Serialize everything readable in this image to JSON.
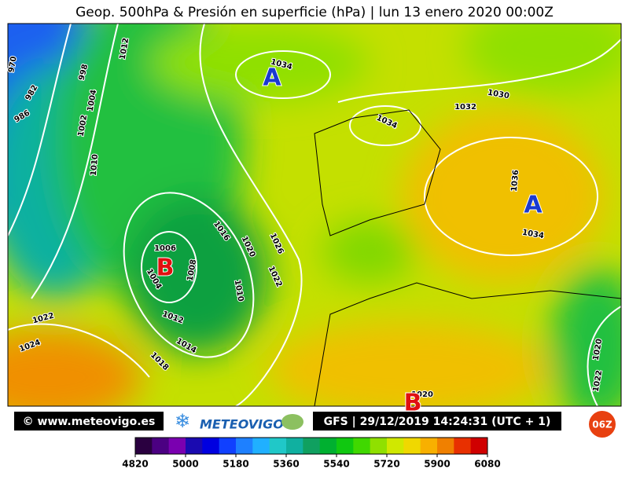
{
  "title": "Geop. 500hPa & Presión en superficie (hPa) | lun 13 enero 2020 00:00Z",
  "isobar_labels": [
    "970",
    "982",
    "986",
    "998",
    "1004",
    "1002",
    "1012",
    "1010",
    "1034",
    "1034",
    "1032",
    "1030",
    "1036",
    "1034",
    "1016",
    "1020",
    "1026",
    "1022",
    "1006",
    "1004",
    "1008",
    "1010",
    "1012",
    "1014",
    "1018",
    "1022",
    "1024",
    "1020",
    "1020",
    "1022"
  ],
  "centers": [
    {
      "label": "A",
      "color": "#1a3ad0"
    },
    {
      "label": "A",
      "color": "#1a3ad0"
    },
    {
      "label": "B",
      "color": "#e01010"
    },
    {
      "label": "B",
      "color": "#e01010"
    }
  ],
  "footer": {
    "site": "© www.meteovigo.es",
    "logo": "METEOVIGO",
    "run": "GFS | 29/12/2019 14:24:31 (UTC + 1)",
    "badge": "06Z"
  },
  "colorbar": {
    "colors": [
      "#2a0040",
      "#4b0082",
      "#7a00b0",
      "#1a0ab0",
      "#0000e0",
      "#1040ff",
      "#1e80ff",
      "#20b0ff",
      "#20c8c8",
      "#10b0a0",
      "#10a060",
      "#00b030",
      "#10c810",
      "#40d800",
      "#90e000",
      "#d0e800",
      "#f0d800",
      "#f8b000",
      "#f08000",
      "#e83000",
      "#d00000"
    ],
    "ticks": [
      4820,
      5000,
      5180,
      5360,
      5540,
      5720,
      5900,
      6080
    ]
  }
}
